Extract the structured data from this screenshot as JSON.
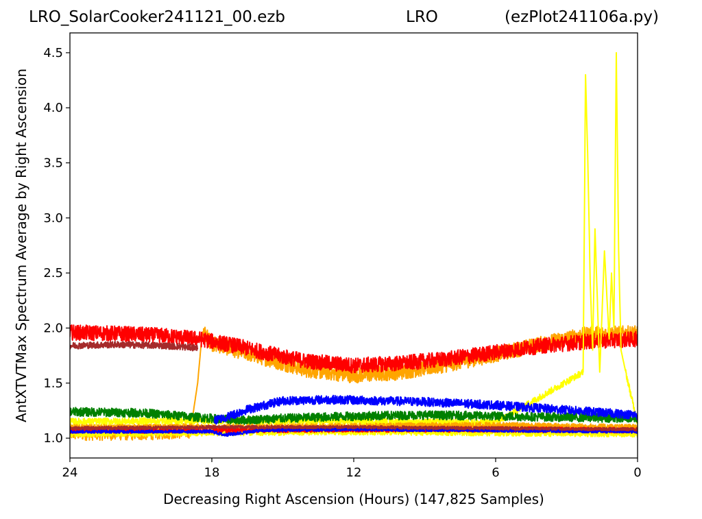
{
  "header": {
    "left": "LRO_SolarCooker241121_00.ezb",
    "center": "LRO",
    "right": "(ezPlot241106a.py)"
  },
  "chart_data": {
    "type": "line",
    "title": "",
    "xlabel": "Decreasing Right Ascension (Hours) (147,825 Samples)",
    "ylabel": "AntXTVTMax Spectrum Average by Right Ascension",
    "x_direction": "decreasing",
    "xlim": [
      24,
      0
    ],
    "ylim": [
      0.82,
      4.68
    ],
    "x_ticks": [
      24,
      18,
      12,
      6,
      0
    ],
    "y_ticks": [
      1.0,
      1.5,
      2.0,
      2.5,
      3.0,
      3.5,
      4.0,
      4.5
    ],
    "grid": false,
    "legend": "none",
    "series": [
      {
        "color": "#ffa500",
        "x": [
          24,
          21,
          18.9,
          18.6,
          18.4,
          18,
          16,
          14,
          12,
          10,
          8,
          6,
          4,
          2,
          0
        ],
        "y": [
          1.05,
          1.05,
          1.07,
          1.5,
          1.98,
          1.86,
          1.74,
          1.62,
          1.57,
          1.6,
          1.67,
          1.76,
          1.86,
          1.95,
          1.95
        ],
        "noise": 0.07
      },
      {
        "color": "#ff0000",
        "x": [
          24,
          22,
          20,
          18.5,
          18,
          17,
          15,
          14,
          12,
          10,
          8,
          6,
          4,
          2,
          0
        ],
        "y": [
          1.96,
          1.95,
          1.93,
          1.9,
          1.88,
          1.84,
          1.74,
          1.7,
          1.66,
          1.68,
          1.72,
          1.78,
          1.84,
          1.88,
          1.9
        ],
        "noise": 0.07
      },
      {
        "color": "#a52a2a",
        "x": [
          24,
          22,
          20,
          18.6
        ],
        "y": [
          1.84,
          1.85,
          1.84,
          1.82
        ],
        "noise": 0.03
      },
      {
        "color": "#ffff00",
        "x": [
          24,
          18,
          12,
          6,
          2.3,
          2.2,
          2.1,
          2.0,
          1.9,
          1.8,
          1.6,
          1.4,
          1.2,
          1.1,
          1.0,
          0.9,
          0.8,
          0.7,
          0.5,
          0
        ],
        "y": [
          1.15,
          1.16,
          1.15,
          1.14,
          1.6,
          4.3,
          3.5,
          2.4,
          1.8,
          2.9,
          1.6,
          2.7,
          1.9,
          2.5,
          2.0,
          4.5,
          2.7,
          1.8,
          1.6,
          1.13
        ],
        "noise": 0.03
      },
      {
        "color": "#ffff00",
        "x": [
          24,
          18,
          12,
          6,
          0
        ],
        "y": [
          1.04,
          1.05,
          1.06,
          1.05,
          1.04
        ],
        "noise": 0.03
      },
      {
        "color": "#008000",
        "x": [
          24,
          21,
          18,
          17,
          15,
          12,
          9,
          6,
          3,
          0
        ],
        "y": [
          1.24,
          1.23,
          1.18,
          1.16,
          1.18,
          1.2,
          1.21,
          1.2,
          1.19,
          1.18
        ],
        "noise": 0.04
      },
      {
        "color": "#0000ff",
        "x": [
          17.9,
          17.4,
          16.5,
          15,
          13,
          11,
          9,
          7,
          6,
          4,
          2,
          0
        ],
        "y": [
          1.16,
          1.19,
          1.26,
          1.34,
          1.35,
          1.34,
          1.33,
          1.31,
          1.3,
          1.27,
          1.24,
          1.21
        ],
        "noise": 0.04
      },
      {
        "color": "#ffa500",
        "x": [
          24,
          18,
          12,
          6,
          0
        ],
        "y": [
          1.1,
          1.1,
          1.11,
          1.12,
          1.1
        ],
        "noise": 0.025
      },
      {
        "color": "#ff0000",
        "x": [
          24,
          18,
          12,
          6,
          0
        ],
        "y": [
          1.07,
          1.07,
          1.08,
          1.08,
          1.07
        ],
        "noise": 0.025
      },
      {
        "color": "#0000ff",
        "x": [
          24,
          18,
          17.5,
          17,
          16,
          12,
          6,
          0
        ],
        "y": [
          1.06,
          1.06,
          1.03,
          1.04,
          1.07,
          1.08,
          1.07,
          1.06
        ],
        "noise": 0.015
      },
      {
        "color": "#a52a2a",
        "x": [
          24,
          18,
          12,
          6,
          0
        ],
        "y": [
          1.09,
          1.1,
          1.1,
          1.09,
          1.08
        ],
        "noise": 0.015
      }
    ]
  }
}
